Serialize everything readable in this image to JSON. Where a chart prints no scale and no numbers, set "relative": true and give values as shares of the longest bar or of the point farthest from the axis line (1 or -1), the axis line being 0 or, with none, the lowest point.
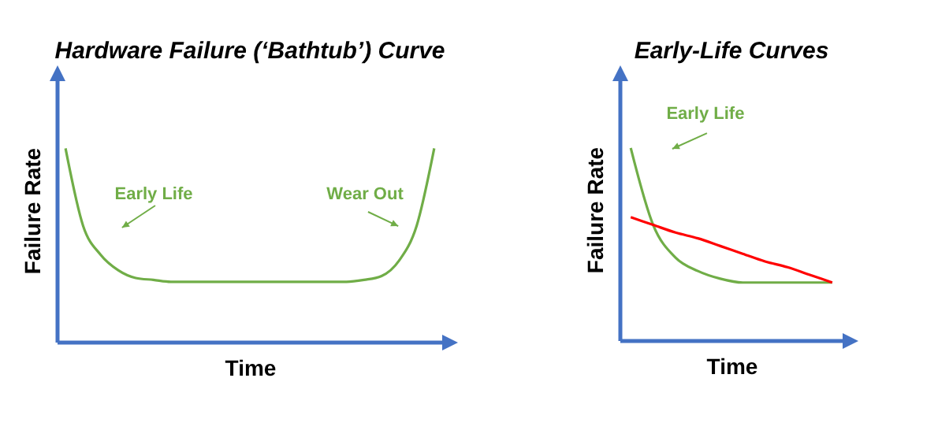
{
  "chart_data": [
    {
      "type": "line",
      "title": "Hardware Failure (‘Bathtub’) Curve",
      "xlabel": "Time",
      "ylabel": "Failure Rate",
      "relative": true,
      "categories": [
        null,
        null,
        null,
        null,
        null,
        null,
        null,
        null,
        null,
        null,
        null,
        null,
        null,
        null,
        null,
        null,
        null,
        null,
        null,
        null,
        null,
        null
      ],
      "series": [
        {
          "color": "#70ad47",
          "values": [
            1,
            0.6,
            0.45,
            0.37,
            0.33,
            0.32,
            0.31,
            0.31,
            0.31,
            0.31,
            0.31,
            0.31,
            0.31,
            0.31,
            0.31,
            0.31,
            0.31,
            0.32,
            0.34,
            0.42,
            0.6,
            1
          ]
        }
      ],
      "annotations": [
        "Early Life",
        "Wear Out"
      ]
    },
    {
      "type": "line",
      "title": "Early-Life Curves",
      "xlabel": "Time",
      "ylabel": "Failure Rate",
      "relative": true,
      "categories": [
        null,
        null,
        null,
        null,
        null,
        null,
        null,
        null,
        null,
        null
      ],
      "series": [
        {
          "color": "#70ad47",
          "values": [
            1,
            0.6,
            0.43,
            0.36,
            0.32,
            0.3,
            0.3,
            0.3,
            0.3,
            0.3
          ]
        },
        {
          "color": "#ff0000",
          "values": [
            0.64,
            0.6,
            0.56,
            0.53,
            0.49,
            0.45,
            0.41,
            0.38,
            0.34,
            0.3
          ]
        }
      ],
      "annotations": [
        "Early Life"
      ]
    }
  ]
}
